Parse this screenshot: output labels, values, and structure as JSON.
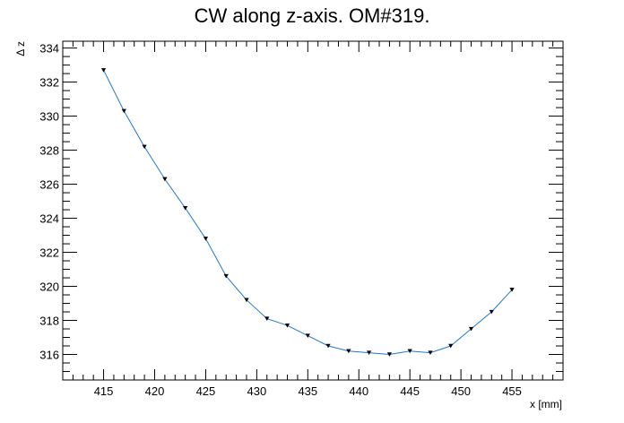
{
  "chart_data": {
    "type": "line",
    "title": "CW along z-axis. OM#319.",
    "xlabel": "x [mm]",
    "ylabel": "Δ z",
    "xlim": [
      411,
      460
    ],
    "ylim": [
      314.5,
      334.4
    ],
    "x_ticks": [
      415,
      420,
      425,
      430,
      435,
      440,
      445,
      450,
      455
    ],
    "y_ticks": [
      316,
      318,
      320,
      322,
      324,
      326,
      328,
      330,
      332,
      334
    ],
    "grid": false,
    "legend": "none",
    "marker": "down-triangle",
    "colors": {
      "line": "#1f77d4",
      "marker": "#000000",
      "frame": "#000000"
    },
    "series": [
      {
        "x": [
          415,
          417,
          419,
          421,
          423,
          425,
          427,
          429,
          431,
          433,
          435,
          437,
          439,
          441,
          443,
          445,
          447,
          449,
          451,
          453,
          455
        ],
        "y": [
          332.7,
          330.3,
          328.2,
          326.3,
          324.6,
          322.8,
          320.6,
          319.2,
          318.1,
          317.7,
          317.1,
          316.5,
          316.2,
          316.1,
          316.0,
          316.2,
          316.1,
          316.5,
          317.5,
          318.5,
          319.8
        ]
      }
    ]
  }
}
